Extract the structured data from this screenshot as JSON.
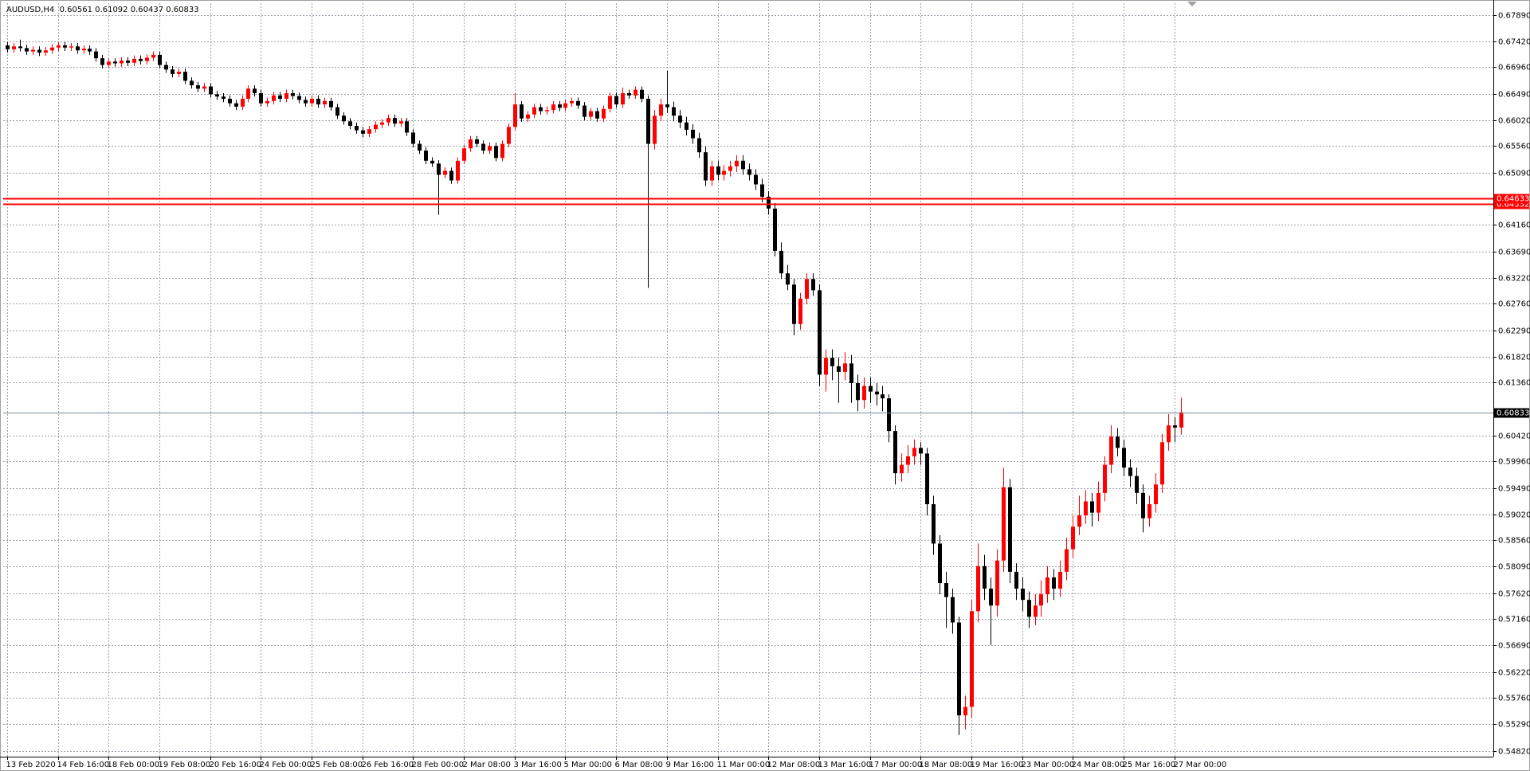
{
  "chart_data": {
    "type": "candlestick",
    "title": "AUDUSD,H4  0.60561 0.61092 0.60437 0.60833",
    "up_color": "#ff0000",
    "down_color": "#000000",
    "grid": true,
    "ylim": [
      0.54716,
      0.68098
    ],
    "yticks": [
      {
        "value": 0.6789,
        "label": "0.67890"
      },
      {
        "value": 0.6742,
        "label": "0.67420"
      },
      {
        "value": 0.6696,
        "label": "0.66960"
      },
      {
        "value": 0.6649,
        "label": "0.66490"
      },
      {
        "value": 0.6602,
        "label": "0.66020"
      },
      {
        "value": 0.6556,
        "label": "0.65560"
      },
      {
        "value": 0.6509,
        "label": "0.65090"
      },
      {
        "value": 0.6416,
        "label": "0.64160"
      },
      {
        "value": 0.6369,
        "label": "0.63690"
      },
      {
        "value": 0.6322,
        "label": "0.63220"
      },
      {
        "value": 0.6276,
        "label": "0.62760"
      },
      {
        "value": 0.6229,
        "label": "0.62290"
      },
      {
        "value": 0.6182,
        "label": "0.61820"
      },
      {
        "value": 0.6136,
        "label": "0.61360"
      },
      {
        "value": 0.6042,
        "label": "0.60420"
      },
      {
        "value": 0.5996,
        "label": "0.59960"
      },
      {
        "value": 0.5949,
        "label": "0.59490"
      },
      {
        "value": 0.5902,
        "label": "0.59020"
      },
      {
        "value": 0.5856,
        "label": "0.58560"
      },
      {
        "value": 0.5809,
        "label": "0.58090"
      },
      {
        "value": 0.5762,
        "label": "0.57620"
      },
      {
        "value": 0.5716,
        "label": "0.57160"
      },
      {
        "value": 0.5669,
        "label": "0.56690"
      },
      {
        "value": 0.5622,
        "label": "0.56220"
      },
      {
        "value": 0.5576,
        "label": "0.55760"
      },
      {
        "value": 0.5529,
        "label": "0.55290"
      },
      {
        "value": 0.5482,
        "label": "0.54820"
      }
    ],
    "hlines": [
      {
        "value": 0.64532,
        "color": "#ff0000"
      },
      {
        "value": 0.64633,
        "color": "#ff0000"
      },
      {
        "value": 0.60833,
        "color": "#000000"
      }
    ],
    "categories": [
      "13 Feb 2020",
      null,
      null,
      null,
      null,
      null,
      null,
      null,
      "14 Feb 16:00",
      null,
      null,
      null,
      null,
      null,
      null,
      null,
      "18 Feb 00:00",
      null,
      null,
      null,
      null,
      null,
      null,
      null,
      "19 Feb 08:00",
      null,
      null,
      null,
      null,
      null,
      null,
      null,
      "20 Feb 16:00",
      null,
      null,
      null,
      null,
      null,
      null,
      null,
      "24 Feb 00:00",
      null,
      null,
      null,
      null,
      null,
      null,
      null,
      "25 Feb 08:00",
      null,
      null,
      null,
      null,
      null,
      null,
      null,
      "26 Feb 16:00",
      null,
      null,
      null,
      null,
      null,
      null,
      null,
      "28 Feb 00:00",
      null,
      null,
      null,
      null,
      null,
      null,
      null,
      "2 Mar 08:00",
      null,
      null,
      null,
      null,
      null,
      null,
      null,
      "3 Mar 16:00",
      null,
      null,
      null,
      null,
      null,
      null,
      null,
      "5 Mar 00:00",
      null,
      null,
      null,
      null,
      null,
      null,
      null,
      "6 Mar 08:00",
      null,
      null,
      null,
      null,
      null,
      null,
      null,
      "9 Mar 16:00",
      null,
      null,
      null,
      null,
      null,
      null,
      null,
      "11 Mar 00:00",
      null,
      null,
      null,
      null,
      null,
      null,
      null,
      "12 Mar 08:00",
      null,
      null,
      null,
      null,
      null,
      null,
      null,
      "13 Mar 16:00",
      null,
      null,
      null,
      null,
      null,
      null,
      null,
      "17 Mar 00:00",
      null,
      null,
      null,
      null,
      null,
      null,
      null,
      "18 Mar 08:00",
      null,
      null,
      null,
      null,
      null,
      null,
      null,
      "19 Mar 16:00",
      null,
      null,
      null,
      null,
      null,
      null,
      null,
      "23 Mar 00:00",
      null,
      null,
      null,
      null,
      null,
      null,
      null,
      "24 Mar 08:00",
      null,
      null,
      null,
      null,
      null,
      null,
      null,
      "25 Mar 16:00",
      null,
      null,
      null,
      null,
      null,
      null,
      null,
      "27 Mar 00:00",
      null
    ],
    "open": [
      0.6735,
      0.6728,
      0.6733,
      0.673,
      0.6724,
      0.6727,
      0.6722,
      0.6726,
      0.6731,
      0.6735,
      0.6731,
      0.6733,
      0.6726,
      0.6729,
      0.6724,
      0.6712,
      0.67,
      0.6706,
      0.6703,
      0.6708,
      0.6704,
      0.6711,
      0.6707,
      0.6713,
      0.6718,
      0.67,
      0.6692,
      0.6684,
      0.6688,
      0.6672,
      0.6664,
      0.6658,
      0.6662,
      0.6648,
      0.6644,
      0.664,
      0.6632,
      0.6626,
      0.664,
      0.6658,
      0.665,
      0.6632,
      0.6636,
      0.6646,
      0.664,
      0.665,
      0.6645,
      0.6638,
      0.6632,
      0.664,
      0.663,
      0.6636,
      0.6625,
      0.661,
      0.66,
      0.6592,
      0.6584,
      0.6578,
      0.6586,
      0.6594,
      0.6598,
      0.6606,
      0.6596,
      0.66,
      0.658,
      0.656,
      0.6548,
      0.653,
      0.6525,
      0.6505,
      0.6512,
      0.6495,
      0.653,
      0.6552,
      0.6568,
      0.656,
      0.6548,
      0.6556,
      0.6535,
      0.656,
      0.659,
      0.663,
      0.6605,
      0.6612,
      0.6625,
      0.6618,
      0.662,
      0.663,
      0.6624,
      0.6632,
      0.6636,
      0.6628,
      0.6608,
      0.6618,
      0.6605,
      0.6622,
      0.6645,
      0.663,
      0.665,
      0.6646,
      0.6656,
      0.664,
      0.656,
      0.661,
      0.663,
      0.6625,
      0.661,
      0.6598,
      0.6585,
      0.657,
      0.6545,
      0.6495,
      0.652,
      0.6505,
      0.6512,
      0.652,
      0.653,
      0.6515,
      0.6505,
      0.6488,
      0.6466,
      0.6445,
      0.637,
      0.633,
      0.631,
      0.624,
      0.6285,
      0.632,
      0.63,
      0.615,
      0.618,
      0.6165,
      0.6155,
      0.617,
      0.6135,
      0.6105,
      0.613,
      0.612,
      0.6115,
      0.6108,
      0.605,
      0.5975,
      0.599,
      0.6005,
      0.602,
      0.601,
      0.592,
      0.585,
      0.578,
      0.5755,
      0.571,
      0.5545,
      0.556,
      0.573,
      0.581,
      0.577,
      0.574,
      0.582,
      0.595,
      0.58,
      0.577,
      0.575,
      0.572,
      0.574,
      0.576,
      0.579,
      0.577,
      0.58,
      0.584,
      0.588,
      0.59,
      0.5925,
      0.5905,
      0.594,
      0.599,
      0.604,
      0.602,
      0.5985,
      0.597,
      0.594,
      0.5895,
      0.592,
      0.5955,
      0.603,
      0.606,
      0.60561
    ],
    "high": [
      0.6741,
      0.6739,
      0.6745,
      0.6736,
      0.6733,
      0.6733,
      0.6732,
      0.6737,
      0.6741,
      0.6741,
      0.6739,
      0.6739,
      0.6735,
      0.6735,
      0.673,
      0.6718,
      0.6712,
      0.6712,
      0.6714,
      0.6714,
      0.6717,
      0.6717,
      0.6719,
      0.6724,
      0.6724,
      0.6706,
      0.6698,
      0.6694,
      0.6694,
      0.6678,
      0.667,
      0.6668,
      0.6668,
      0.6654,
      0.665,
      0.6646,
      0.6638,
      0.6646,
      0.6664,
      0.6664,
      0.6656,
      0.6642,
      0.6652,
      0.6652,
      0.6656,
      0.6656,
      0.6651,
      0.6644,
      0.6646,
      0.6646,
      0.6642,
      0.6642,
      0.6631,
      0.6616,
      0.6606,
      0.6598,
      0.659,
      0.6592,
      0.66,
      0.6604,
      0.6612,
      0.6612,
      0.6606,
      0.6606,
      0.6586,
      0.6566,
      0.6554,
      0.6536,
      0.6531,
      0.6518,
      0.6518,
      0.6536,
      0.6558,
      0.6574,
      0.6574,
      0.6566,
      0.6562,
      0.6562,
      0.6566,
      0.6596,
      0.665,
      0.6636,
      0.6618,
      0.6631,
      0.6631,
      0.6626,
      0.6636,
      0.6636,
      0.6638,
      0.6642,
      0.6642,
      0.6634,
      0.6624,
      0.6624,
      0.6628,
      0.6651,
      0.6651,
      0.666,
      0.6656,
      0.6662,
      0.6662,
      0.6646,
      0.662,
      0.664,
      0.669,
      0.6635,
      0.662,
      0.6608,
      0.6595,
      0.658,
      0.6555,
      0.653,
      0.653,
      0.6522,
      0.653,
      0.654,
      0.654,
      0.6525,
      0.6515,
      0.6498,
      0.6476,
      0.6455,
      0.6385,
      0.6345,
      0.632,
      0.6295,
      0.633,
      0.633,
      0.631,
      0.6195,
      0.6195,
      0.618,
      0.619,
      0.6185,
      0.615,
      0.6145,
      0.6145,
      0.6135,
      0.613,
      0.6115,
      0.606,
      0.601,
      0.6025,
      0.6035,
      0.603,
      0.602,
      0.5935,
      0.5865,
      0.58,
      0.577,
      0.572,
      0.558,
      0.575,
      0.585,
      0.583,
      0.579,
      0.584,
      0.5985,
      0.5965,
      0.5815,
      0.579,
      0.5765,
      0.576,
      0.5785,
      0.581,
      0.5805,
      0.582,
      0.586,
      0.59,
      0.5935,
      0.5945,
      0.594,
      0.596,
      0.6005,
      0.606,
      0.6055,
      0.6035,
      0.6,
      0.5985,
      0.5955,
      0.5935,
      0.5975,
      0.6045,
      0.608,
      0.6075,
      0.61092
    ],
    "low": [
      0.6722,
      0.6722,
      0.6724,
      0.6718,
      0.6718,
      0.6716,
      0.6716,
      0.672,
      0.6725,
      0.6725,
      0.6725,
      0.672,
      0.672,
      0.6718,
      0.6706,
      0.6694,
      0.6694,
      0.6697,
      0.6697,
      0.6698,
      0.6698,
      0.6701,
      0.6701,
      0.6707,
      0.6694,
      0.6686,
      0.6678,
      0.6678,
      0.6666,
      0.6658,
      0.6652,
      0.6652,
      0.6642,
      0.6638,
      0.6634,
      0.6626,
      0.662,
      0.662,
      0.6634,
      0.6644,
      0.6626,
      0.6626,
      0.663,
      0.6634,
      0.6634,
      0.6639,
      0.6632,
      0.6626,
      0.6626,
      0.6624,
      0.6624,
      0.6619,
      0.6604,
      0.6594,
      0.6586,
      0.6578,
      0.6572,
      0.6572,
      0.658,
      0.6588,
      0.6592,
      0.659,
      0.659,
      0.6574,
      0.6554,
      0.6542,
      0.6524,
      0.6519,
      0.6434,
      0.6499,
      0.6489,
      0.6489,
      0.6524,
      0.6546,
      0.6554,
      0.6542,
      0.6542,
      0.6529,
      0.6529,
      0.6554,
      0.6584,
      0.6599,
      0.6599,
      0.6606,
      0.6612,
      0.6612,
      0.6614,
      0.6618,
      0.6618,
      0.6626,
      0.6622,
      0.6602,
      0.6602,
      0.6599,
      0.6599,
      0.6616,
      0.6624,
      0.6624,
      0.664,
      0.664,
      0.6634,
      0.6304,
      0.655,
      0.66,
      0.6615,
      0.66,
      0.6588,
      0.6575,
      0.656,
      0.6535,
      0.6485,
      0.6485,
      0.6495,
      0.6495,
      0.6502,
      0.651,
      0.6505,
      0.6495,
      0.6478,
      0.6456,
      0.6435,
      0.636,
      0.632,
      0.63,
      0.622,
      0.623,
      0.6275,
      0.629,
      0.613,
      0.612,
      0.614,
      0.61,
      0.614,
      0.61,
      0.6085,
      0.609,
      0.61,
      0.6095,
      0.6085,
      0.603,
      0.5955,
      0.596,
      0.5975,
      0.599,
      0.599,
      0.59,
      0.583,
      0.576,
      0.57,
      0.569,
      0.551,
      0.552,
      0.554,
      0.571,
      0.575,
      0.567,
      0.572,
      0.58,
      0.578,
      0.575,
      0.573,
      0.57,
      0.5705,
      0.572,
      0.5745,
      0.575,
      0.5755,
      0.5785,
      0.5825,
      0.5865,
      0.5885,
      0.588,
      0.589,
      0.5925,
      0.5975,
      0.6005,
      0.597,
      0.595,
      0.592,
      0.587,
      0.588,
      0.5905,
      0.594,
      0.6015,
      0.603,
      0.60437
    ],
    "close": [
      0.6728,
      0.6733,
      0.673,
      0.6724,
      0.6727,
      0.6722,
      0.6726,
      0.6731,
      0.6735,
      0.6731,
      0.6733,
      0.6726,
      0.6729,
      0.6724,
      0.6712,
      0.67,
      0.6706,
      0.6703,
      0.6708,
      0.6704,
      0.6711,
      0.6707,
      0.6713,
      0.6718,
      0.67,
      0.6692,
      0.6684,
      0.6688,
      0.6672,
      0.6664,
      0.6658,
      0.6662,
      0.6648,
      0.6644,
      0.664,
      0.6632,
      0.6626,
      0.664,
      0.6658,
      0.665,
      0.6632,
      0.6636,
      0.6646,
      0.664,
      0.665,
      0.6645,
      0.6638,
      0.6632,
      0.664,
      0.663,
      0.6636,
      0.6625,
      0.661,
      0.66,
      0.6592,
      0.6584,
      0.6578,
      0.6586,
      0.6594,
      0.6598,
      0.6606,
      0.6596,
      0.66,
      0.658,
      0.656,
      0.6548,
      0.653,
      0.6525,
      0.6505,
      0.6512,
      0.6495,
      0.653,
      0.6552,
      0.6568,
      0.656,
      0.6548,
      0.6556,
      0.6535,
      0.656,
      0.659,
      0.663,
      0.6605,
      0.6612,
      0.6625,
      0.6618,
      0.662,
      0.663,
      0.6624,
      0.6632,
      0.6636,
      0.6628,
      0.6608,
      0.6618,
      0.6605,
      0.6622,
      0.6645,
      0.663,
      0.665,
      0.6646,
      0.6656,
      0.664,
      0.656,
      0.661,
      0.663,
      0.6625,
      0.661,
      0.6598,
      0.6585,
      0.657,
      0.6545,
      0.6495,
      0.652,
      0.6505,
      0.6512,
      0.652,
      0.653,
      0.6515,
      0.6505,
      0.6488,
      0.6466,
      0.6445,
      0.637,
      0.633,
      0.631,
      0.624,
      0.6285,
      0.632,
      0.63,
      0.615,
      0.618,
      0.6165,
      0.6155,
      0.617,
      0.6135,
      0.6105,
      0.613,
      0.612,
      0.6115,
      0.6108,
      0.605,
      0.5975,
      0.599,
      0.6005,
      0.602,
      0.601,
      0.592,
      0.585,
      0.578,
      0.5755,
      0.571,
      0.5545,
      0.556,
      0.573,
      0.581,
      0.577,
      0.574,
      0.582,
      0.595,
      0.58,
      0.577,
      0.575,
      0.572,
      0.574,
      0.576,
      0.579,
      0.577,
      0.58,
      0.584,
      0.588,
      0.59,
      0.5925,
      0.5905,
      0.594,
      0.599,
      0.604,
      0.602,
      0.5985,
      0.597,
      0.594,
      0.5895,
      0.592,
      0.5955,
      0.603,
      0.606,
      0.60561,
      0.60833
    ]
  }
}
